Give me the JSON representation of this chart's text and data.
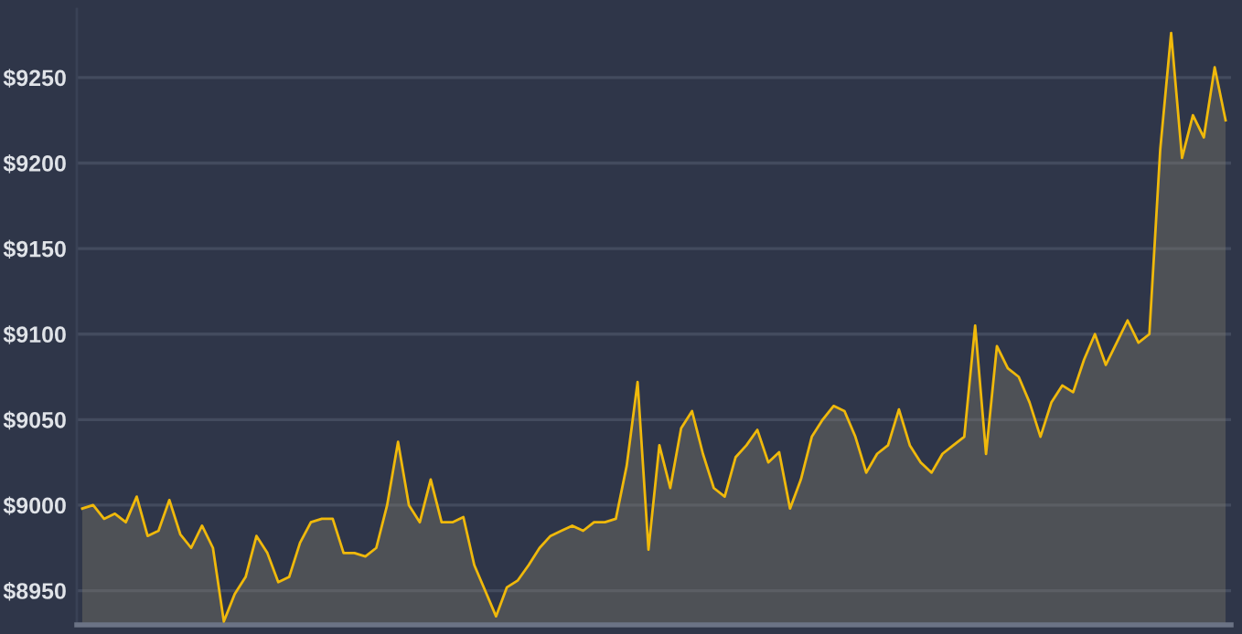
{
  "chart_data": {
    "type": "area",
    "categories": [
      null,
      null,
      null,
      null,
      null,
      null,
      null,
      null,
      null,
      null,
      null,
      null,
      null,
      null,
      null,
      null,
      null,
      null,
      null,
      null,
      null,
      null,
      null,
      null,
      null,
      null,
      null,
      null,
      null,
      null,
      null,
      null,
      null,
      null,
      null,
      null,
      null,
      null,
      null,
      null,
      null,
      null,
      null,
      null,
      null,
      null,
      null,
      null,
      null,
      null,
      null,
      null,
      null,
      null,
      null,
      null,
      null,
      null,
      null,
      null,
      null,
      null,
      null,
      null,
      null,
      null,
      null,
      null,
      null,
      null,
      null,
      null,
      null,
      null,
      null,
      null,
      null,
      null,
      null,
      null,
      null,
      null,
      null,
      null,
      null,
      null,
      null,
      null,
      null,
      null,
      null,
      null,
      null,
      null,
      null,
      null,
      null,
      null,
      null,
      null,
      null,
      null,
      null,
      null,
      null,
      null
    ],
    "series": [
      {
        "color": "#f0b90b",
        "values": [
          8998,
          9000,
          8992,
          8995,
          8990,
          9005,
          8982,
          8985,
          9003,
          8983,
          8975,
          8988,
          8975,
          8932,
          8948,
          8958,
          8982,
          8972,
          8955,
          8958,
          8978,
          8990,
          8992,
          8992,
          8972,
          8972,
          8970,
          8975,
          9000,
          9037,
          9000,
          8990,
          9015,
          8990,
          8990,
          8993,
          8965,
          8950,
          8935,
          8952,
          8956,
          8965,
          8975,
          8982,
          8985,
          8988,
          8985,
          8990,
          8990,
          8992,
          9023,
          9072,
          8974,
          9035,
          9010,
          9045,
          9055,
          9030,
          9010,
          9005,
          9028,
          9035,
          9044,
          9025,
          9031,
          8998,
          9015,
          9040,
          9050,
          9058,
          9055,
          9040,
          9019,
          9030,
          9035,
          9056,
          9035,
          9025,
          9019,
          9030,
          9035,
          9040,
          9105,
          9030,
          9093,
          9080,
          9075,
          9060,
          9040,
          9060,
          9070,
          9066,
          9085,
          9100,
          9082,
          9095,
          9108,
          9095,
          9100,
          9208,
          9276,
          9203,
          9228,
          9215,
          9256,
          9225
        ]
      }
    ],
    "ylim": [
      8930,
      9290
    ],
    "yticks": [
      {
        "value": 8950,
        "label": "$8950"
      },
      {
        "value": 9000,
        "label": "$9000"
      },
      {
        "value": 9050,
        "label": "$9050"
      },
      {
        "value": 9100,
        "label": "$9100"
      },
      {
        "value": 9150,
        "label": "$9150"
      },
      {
        "value": 9200,
        "label": "$9200"
      },
      {
        "value": 9250,
        "label": "$9250"
      }
    ],
    "grid": "y",
    "tick_labels": "y"
  }
}
